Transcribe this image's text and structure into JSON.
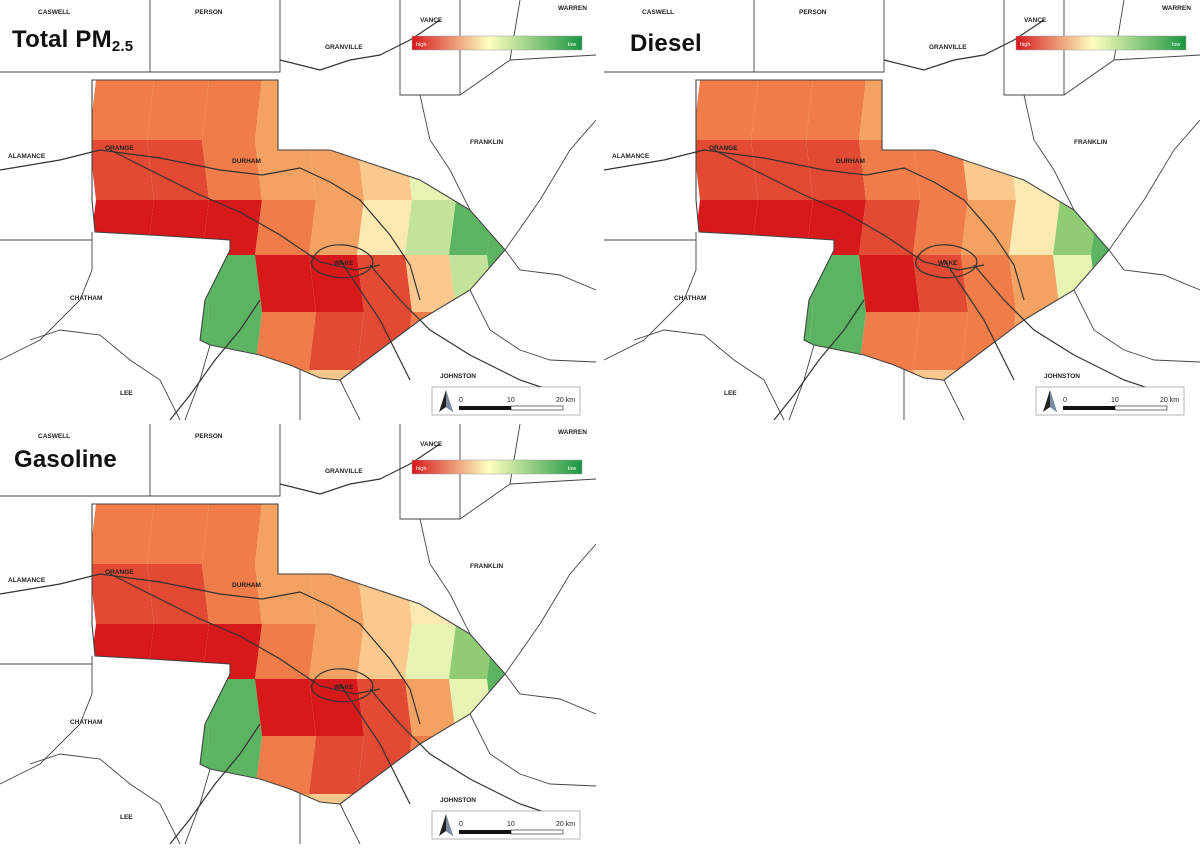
{
  "panels": [
    {
      "id": "total",
      "title": "Total PM",
      "title_sub": "2.5",
      "legend": {
        "high": "high",
        "low": "low"
      },
      "cells": [
        [
          2,
          2,
          2,
          3,
          4,
          9,
          9,
          9,
          9,
          9
        ],
        [
          1,
          1,
          2,
          3,
          3,
          4,
          6,
          8,
          9,
          9
        ],
        [
          0,
          0,
          0,
          2,
          3,
          5,
          7,
          9,
          9,
          9
        ],
        [
          9,
          9,
          9,
          0,
          0,
          1,
          4,
          7,
          9,
          9
        ],
        [
          9,
          9,
          9,
          2,
          1,
          1,
          2,
          6,
          9,
          9
        ],
        [
          9,
          9,
          9,
          3,
          4,
          4,
          6,
          8,
          9,
          9
        ]
      ]
    },
    {
      "id": "diesel",
      "title": "Diesel",
      "title_sub": "",
      "legend": {
        "high": "high",
        "low": "low"
      },
      "cells": [
        [
          2,
          2,
          2,
          3,
          3,
          8,
          8,
          8,
          8,
          8
        ],
        [
          1,
          1,
          1,
          2,
          2,
          4,
          5,
          6,
          8,
          8
        ],
        [
          0,
          0,
          0,
          1,
          2,
          3,
          5,
          8,
          9,
          9
        ],
        [
          9,
          9,
          9,
          0,
          1,
          2,
          3,
          6,
          9,
          9
        ],
        [
          9,
          9,
          9,
          2,
          2,
          2,
          3,
          6,
          9,
          9
        ],
        [
          9,
          9,
          9,
          3,
          4,
          4,
          6,
          8,
          9,
          9
        ]
      ]
    },
    {
      "id": "gasoline",
      "title": "Gasoline",
      "title_sub": "",
      "legend": {
        "high": "high",
        "low": "low"
      },
      "cells": [
        [
          2,
          2,
          2,
          3,
          4,
          9,
          9,
          9,
          9,
          9
        ],
        [
          1,
          1,
          2,
          3,
          3,
          4,
          5,
          7,
          9,
          9
        ],
        [
          0,
          0,
          0,
          2,
          3,
          4,
          6,
          8,
          9,
          9
        ],
        [
          9,
          9,
          9,
          0,
          0,
          1,
          3,
          6,
          9,
          9
        ],
        [
          9,
          9,
          9,
          2,
          1,
          1,
          2,
          6,
          9,
          9
        ],
        [
          9,
          9,
          9,
          3,
          4,
          4,
          6,
          8,
          9,
          9
        ]
      ]
    }
  ],
  "counties": {
    "caswell": "CASWELL",
    "person": "PERSON",
    "vance": "VANCE",
    "warren": "WARREN",
    "granville": "GRANVILLE",
    "franklin": "FRANKLIN",
    "alamance": "ALAMANCE",
    "orange": "ORANGE",
    "durham": "DURHAM",
    "wake": "WAKE",
    "chatham": "CHATHAM",
    "johnston": "JOHNSTON",
    "lee": "LEE"
  },
  "scale_bar": {
    "zero": "0",
    "mid": "10",
    "end": "20 km"
  },
  "colors": {
    "high": "#d7191c",
    "mid": "#ffffbf",
    "low": "#1a9641",
    "ramp": [
      "#d7191c",
      "#e34a33",
      "#f07c4a",
      "#f4a261",
      "#fbc98d",
      "#fbe9b1",
      "#e7f3b3",
      "#c3e29a",
      "#90cc74",
      "#5cb462",
      "#2e9a4a"
    ]
  }
}
